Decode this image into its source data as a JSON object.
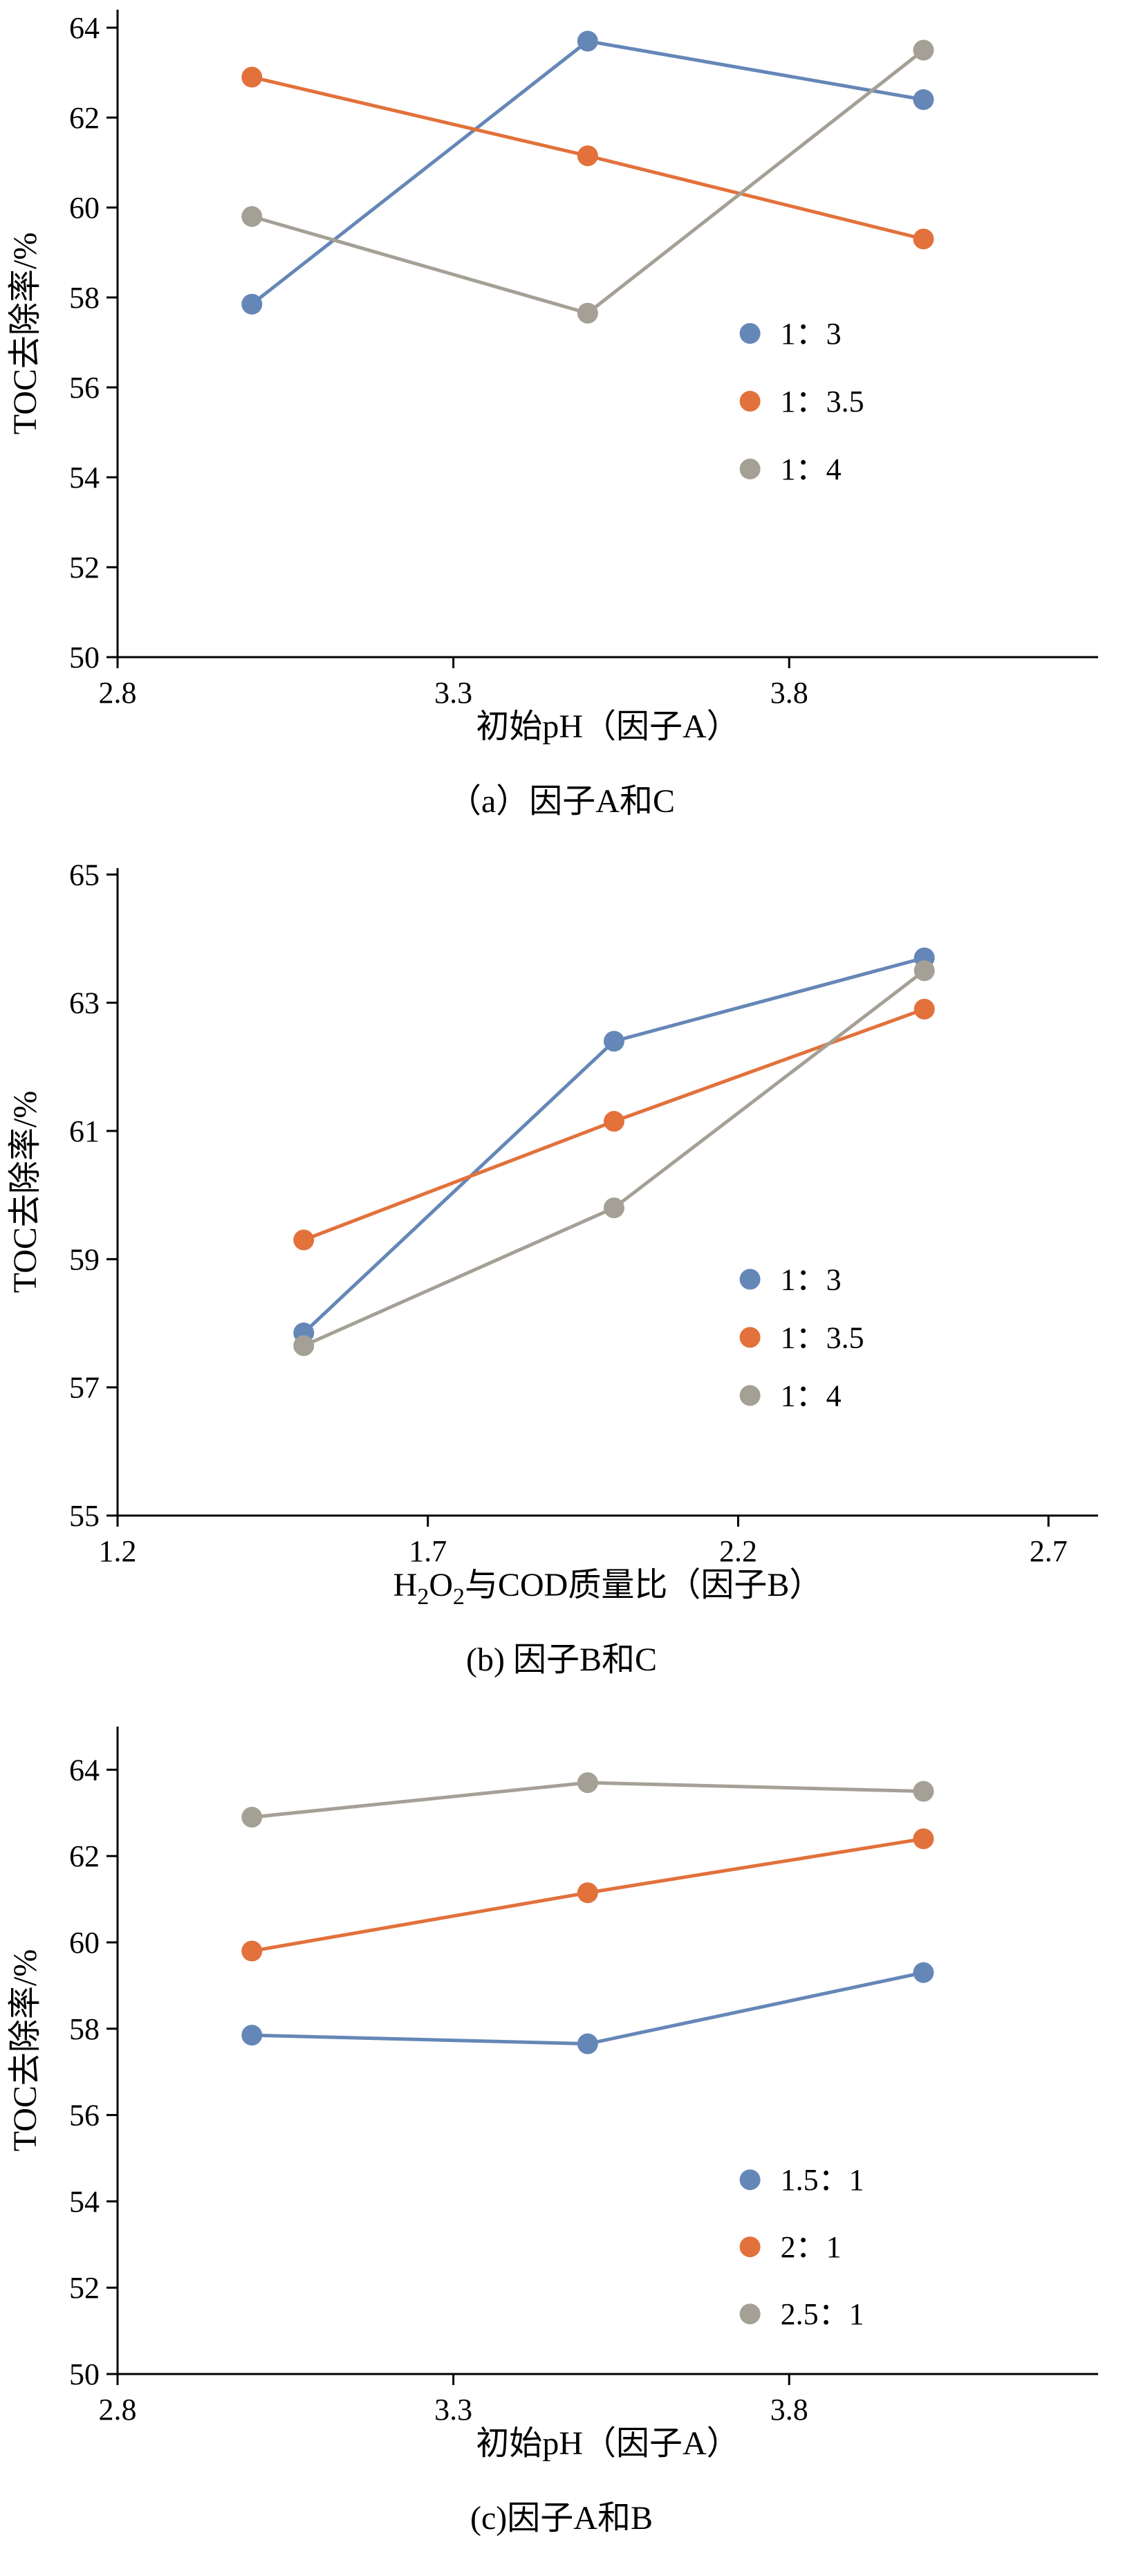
{
  "colors": {
    "series_blue": "#6587b7",
    "series_orange": "#e2713b",
    "series_gray": "#a5a096",
    "axis": "#000000",
    "text": "#000000",
    "background": "#ffffff"
  },
  "chart_data": [
    {
      "type": "line",
      "title": "（a）因子A和C",
      "xlabel": "初始pH（因子A）",
      "ylabel": "TOC去除率/%",
      "xlim": [
        2.8,
        4.26
      ],
      "ylim": [
        50,
        64.4
      ],
      "xtick_values": [
        2.8,
        3.3,
        3.8
      ],
      "xtick_labels": [
        "2.8",
        "3.3",
        "3.8"
      ],
      "ytick_values": [
        50,
        52,
        54,
        56,
        58,
        60,
        62,
        64
      ],
      "ytick_labels": [
        "50",
        "52",
        "54",
        "56",
        "58",
        "60",
        "62",
        "64"
      ],
      "x": [
        3.0,
        3.5,
        4.0
      ],
      "series": [
        {
          "name": "1：3",
          "color": "series_blue",
          "values": [
            57.85,
            63.7,
            62.4
          ]
        },
        {
          "name": "1：3.5",
          "color": "series_orange",
          "values": [
            62.9,
            61.15,
            59.3
          ]
        },
        {
          "name": "1：4",
          "color": "series_gray",
          "values": [
            59.8,
            57.65,
            63.5
          ]
        }
      ],
      "legend": {
        "position": "lower-right",
        "fx": 0.645,
        "fy": 0.5,
        "row_gap": 98
      },
      "grid": "off"
    },
    {
      "type": "line",
      "title": "(b) 因子B和C",
      "xlabel": "H2O2与COD质量比（因子B）",
      "xlabel_runs": [
        {
          "t": "H"
        },
        {
          "t": "2",
          "sub": true
        },
        {
          "t": "O"
        },
        {
          "t": "2",
          "sub": true
        },
        {
          "t": "与COD质量比（因子B）"
        }
      ],
      "ylabel": "TOC去除率/%",
      "xlim": [
        1.2,
        2.78
      ],
      "ylim": [
        55,
        65.1
      ],
      "xtick_values": [
        1.2,
        1.7,
        2.2,
        2.7
      ],
      "xtick_labels": [
        "1.2",
        "1.7",
        "2.2",
        "2.7"
      ],
      "ytick_values": [
        55,
        57,
        59,
        61,
        63,
        65
      ],
      "ytick_labels": [
        "55",
        "57",
        "59",
        "61",
        "63",
        "65"
      ],
      "x": [
        1.5,
        2.0,
        2.5
      ],
      "series": [
        {
          "name": "1：3",
          "color": "series_blue",
          "values": [
            57.85,
            62.4,
            63.7
          ]
        },
        {
          "name": "1：3.5",
          "color": "series_orange",
          "values": [
            59.3,
            61.15,
            62.9
          ]
        },
        {
          "name": "1：4",
          "color": "series_gray",
          "values": [
            57.65,
            59.8,
            63.5
          ]
        }
      ],
      "legend": {
        "position": "lower-right",
        "fx": 0.645,
        "fy": 0.635,
        "row_gap": 84
      },
      "grid": "off"
    },
    {
      "type": "line",
      "title": "(c)因子A和B",
      "xlabel": "初始pH（因子A）",
      "ylabel": "TOC去除率/%",
      "xlim": [
        2.8,
        4.26
      ],
      "ylim": [
        50,
        65.0
      ],
      "xtick_values": [
        2.8,
        3.3,
        3.8
      ],
      "xtick_labels": [
        "2.8",
        "3.3",
        "3.8"
      ],
      "ytick_values": [
        50,
        52,
        54,
        56,
        58,
        60,
        62,
        64
      ],
      "ytick_labels": [
        "50",
        "52",
        "54",
        "56",
        "58",
        "60",
        "62",
        "64"
      ],
      "x": [
        3.0,
        3.5,
        4.0
      ],
      "series": [
        {
          "name": "1.5：1",
          "color": "series_blue",
          "values": [
            57.85,
            57.65,
            59.3
          ]
        },
        {
          "name": "2：1",
          "color": "series_orange",
          "values": [
            59.8,
            61.15,
            62.4
          ]
        },
        {
          "name": "2.5：1",
          "color": "series_gray",
          "values": [
            62.9,
            63.7,
            63.5
          ]
        }
      ],
      "legend": {
        "position": "lower-right",
        "fx": 0.645,
        "fy": 0.7,
        "row_gap": 97
      },
      "grid": "off"
    }
  ]
}
